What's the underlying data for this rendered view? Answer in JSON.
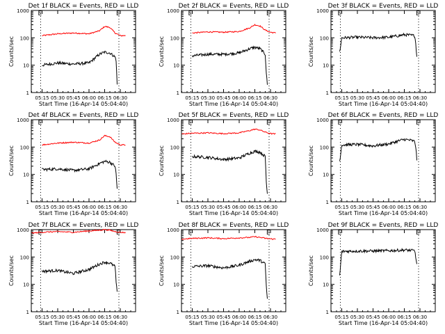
{
  "layout_note": "3x3 grid of RHESSI detector count-rate time series",
  "chart_data": [
    {
      "type": "line",
      "title": "Det 1f BLACK = Events, RED = LLD",
      "xlabel": "Start Time (16-Apr-14 05:04:40)",
      "ylabel": "Counts/sec",
      "yscale": "log",
      "ylim": [
        1,
        1000
      ],
      "x_ticks": [
        "05:15",
        "05:30",
        "05:45",
        "06:00",
        "06:15",
        "06:30"
      ],
      "y_ticks": [
        "1",
        "10",
        "100",
        "1000"
      ],
      "markers": [
        "E",
        "E"
      ],
      "series": [
        {
          "color": "#ff0000",
          "x": [
            "05:15",
            "05:30",
            "05:45",
            "06:00",
            "06:10",
            "06:15",
            "06:20",
            "06:25",
            "06:30",
            "06:35"
          ],
          "y": [
            120,
            140,
            150,
            140,
            180,
            260,
            240,
            150,
            120,
            120
          ]
        },
        {
          "color": "#000000",
          "x": [
            "05:15",
            "05:30",
            "05:45",
            "06:00",
            "06:10",
            "06:15",
            "06:20",
            "06:25",
            "06:26",
            "06:27"
          ],
          "y": [
            10,
            12,
            11,
            12,
            25,
            30,
            28,
            20,
            15,
            2
          ]
        }
      ]
    },
    {
      "type": "line",
      "title": "Det 2f BLACK = Events, RED = LLD",
      "xlabel": "Start Time (16-Apr-14 05:04:40)",
      "ylabel": "Counts/sec",
      "yscale": "log",
      "ylim": [
        1,
        1000
      ],
      "x_ticks": [
        "05:15",
        "05:30",
        "05:45",
        "06:00",
        "06:15",
        "06:30"
      ],
      "y_ticks": [
        "1",
        "10",
        "100",
        "1000"
      ],
      "markers": [
        "E",
        "E"
      ],
      "series": [
        {
          "color": "#ff0000",
          "x": [
            "05:15",
            "05:30",
            "05:45",
            "06:00",
            "06:10",
            "06:15",
            "06:20",
            "06:25",
            "06:30",
            "06:35"
          ],
          "y": [
            150,
            165,
            160,
            170,
            230,
            300,
            270,
            190,
            160,
            150
          ]
        },
        {
          "color": "#000000",
          "x": [
            "05:15",
            "05:30",
            "05:45",
            "06:00",
            "06:10",
            "06:15",
            "06:20",
            "06:25",
            "06:26",
            "06:27"
          ],
          "y": [
            22,
            25,
            25,
            28,
            40,
            45,
            40,
            25,
            5,
            2
          ]
        }
      ]
    },
    {
      "type": "line",
      "title": "Det 3f BLACK = Events, RED = LLD",
      "xlabel": "Start Time (16-Apr-14 05:04:40)",
      "ylabel": "Counts/sec",
      "yscale": "log",
      "ylim": [
        1,
        1000
      ],
      "x_ticks": [
        "05:15",
        "05:30",
        "05:45",
        "06:00",
        "06:15",
        "06:30"
      ],
      "y_ticks": [
        "1",
        "10",
        "100",
        "1000"
      ],
      "markers": [
        "E",
        "E"
      ],
      "series": [
        {
          "color": "#000000",
          "x": [
            "05:13",
            "05:15",
            "05:30",
            "05:45",
            "06:00",
            "06:10",
            "06:15",
            "06:20",
            "06:25",
            "06:26",
            "06:27"
          ],
          "y": [
            30,
            100,
            105,
            100,
            105,
            120,
            130,
            125,
            120,
            60,
            20
          ]
        }
      ]
    },
    {
      "type": "line",
      "title": "Det 4f BLACK = Events, RED = LLD",
      "xlabel": "Start Time (16-Apr-14 05:04:40)",
      "ylabel": "Counts/sec",
      "yscale": "log",
      "ylim": [
        1,
        1000
      ],
      "x_ticks": [
        "05:15",
        "05:30",
        "05:45",
        "06:00",
        "06:15",
        "06:30"
      ],
      "y_ticks": [
        "1",
        "10",
        "100",
        "1000"
      ],
      "markers": [
        "E",
        "E"
      ],
      "series": [
        {
          "color": "#ff0000",
          "x": [
            "05:15",
            "05:30",
            "05:45",
            "06:00",
            "06:10",
            "06:15",
            "06:20",
            "06:25",
            "06:30",
            "06:35"
          ],
          "y": [
            120,
            140,
            150,
            140,
            180,
            260,
            240,
            150,
            120,
            120
          ]
        },
        {
          "color": "#000000",
          "x": [
            "05:15",
            "05:30",
            "05:45",
            "06:00",
            "06:10",
            "06:15",
            "06:20",
            "06:25",
            "06:26",
            "06:27"
          ],
          "y": [
            15,
            16,
            14,
            16,
            25,
            30,
            28,
            20,
            10,
            3
          ]
        }
      ]
    },
    {
      "type": "line",
      "title": "Det 5f BLACK = Events, RED = LLD",
      "xlabel": "Start Time (16-Apr-14 05:04:40)",
      "ylabel": "Counts/sec",
      "yscale": "log",
      "ylim": [
        1,
        1000
      ],
      "x_ticks": [
        "05:15",
        "05:30",
        "05:45",
        "06:00",
        "06:15",
        "06:30"
      ],
      "y_ticks": [
        "1",
        "10",
        "100",
        "1000"
      ],
      "markers": [
        "E",
        "E"
      ],
      "series": [
        {
          "color": "#ff0000",
          "x": [
            "05:05",
            "05:15",
            "05:30",
            "05:45",
            "06:00",
            "06:10",
            "06:15",
            "06:20",
            "06:25",
            "06:30",
            "06:35"
          ],
          "y": [
            300,
            320,
            330,
            310,
            330,
            400,
            450,
            420,
            350,
            310,
            300
          ]
        },
        {
          "color": "#000000",
          "x": [
            "05:15",
            "05:30",
            "05:45",
            "06:00",
            "06:10",
            "06:15",
            "06:20",
            "06:25",
            "06:26",
            "06:27"
          ],
          "y": [
            45,
            42,
            35,
            40,
            60,
            70,
            65,
            45,
            5,
            2
          ]
        }
      ]
    },
    {
      "type": "line",
      "title": "Det 6f BLACK = Events, RED = LLD",
      "xlabel": "Start Time (16-Apr-14 05:04:40)",
      "ylabel": "Counts/sec",
      "yscale": "log",
      "ylim": [
        1,
        1000
      ],
      "x_ticks": [
        "05:15",
        "05:30",
        "05:45",
        "06:00",
        "06:15",
        "06:30"
      ],
      "y_ticks": [
        "1",
        "10",
        "100",
        "1000"
      ],
      "markers": [
        "E",
        "E"
      ],
      "series": [
        {
          "color": "#000000",
          "x": [
            "05:13",
            "05:15",
            "05:30",
            "05:45",
            "06:00",
            "06:10",
            "06:15",
            "06:20",
            "06:25",
            "06:26",
            "06:27"
          ],
          "y": [
            30,
            120,
            125,
            110,
            130,
            170,
            190,
            180,
            160,
            100,
            35
          ]
        }
      ]
    },
    {
      "type": "line",
      "title": "Det 7f BLACK = Events, RED = LLD",
      "xlabel": "Start Time (16-Apr-14 05:04:40)",
      "ylabel": "Counts/sec",
      "yscale": "log",
      "ylim": [
        1,
        1000
      ],
      "x_ticks": [
        "05:15",
        "05:30",
        "05:45",
        "06:00",
        "06:15",
        "06:30"
      ],
      "y_ticks": [
        "1",
        "10",
        "100",
        "1000"
      ],
      "markers": [
        "E",
        "E"
      ],
      "series": [
        {
          "color": "#ff0000",
          "x": [
            "05:05",
            "05:15",
            "05:30",
            "05:45",
            "06:00",
            "06:10",
            "06:15",
            "06:20",
            "06:25",
            "06:30",
            "06:35"
          ],
          "y": [
            750,
            800,
            850,
            800,
            900,
            950,
            1000,
            950,
            850,
            800,
            780
          ]
        },
        {
          "color": "#000000",
          "x": [
            "05:15",
            "05:30",
            "05:45",
            "06:00",
            "06:10",
            "06:15",
            "06:20",
            "06:25",
            "06:26",
            "06:27"
          ],
          "y": [
            30,
            32,
            25,
            35,
            55,
            65,
            60,
            45,
            12,
            5
          ]
        }
      ]
    },
    {
      "type": "line",
      "title": "Det 8f BLACK = Events, RED = LLD",
      "xlabel": "Start Time (16-Apr-14 05:04:40)",
      "ylabel": "Counts/sec",
      "yscale": "log",
      "ylim": [
        1,
        1000
      ],
      "x_ticks": [
        "05:15",
        "05:30",
        "05:45",
        "06:00",
        "06:15",
        "06:30"
      ],
      "y_ticks": [
        "1",
        "10",
        "100",
        "1000"
      ],
      "markers": [
        "E",
        "E"
      ],
      "series": [
        {
          "color": "#ff0000",
          "x": [
            "05:05",
            "05:15",
            "05:30",
            "05:45",
            "06:00",
            "06:10",
            "06:15",
            "06:20",
            "06:25",
            "06:30",
            "06:35"
          ],
          "y": [
            450,
            480,
            500,
            470,
            500,
            520,
            550,
            520,
            480,
            460,
            450
          ]
        },
        {
          "color": "#000000",
          "x": [
            "05:15",
            "05:30",
            "05:45",
            "06:00",
            "06:10",
            "06:15",
            "06:20",
            "06:25",
            "06:26",
            "06:27"
          ],
          "y": [
            45,
            48,
            40,
            50,
            70,
            80,
            75,
            55,
            8,
            3
          ]
        }
      ]
    },
    {
      "type": "line",
      "title": "Det 9f BLACK = Events, RED = LLD",
      "xlabel": "Start Time (16-Apr-14 05:04:40)",
      "ylabel": "Counts/sec",
      "yscale": "log",
      "ylim": [
        1,
        1000
      ],
      "x_ticks": [
        "05:15",
        "05:30",
        "05:45",
        "06:00",
        "06:15",
        "06:30"
      ],
      "y_ticks": [
        "1",
        "10",
        "100",
        "1000"
      ],
      "markers": [
        "E",
        "E"
      ],
      "series": [
        {
          "color": "#000000",
          "x": [
            "05:13",
            "05:15",
            "05:30",
            "05:45",
            "06:00",
            "06:10",
            "06:15",
            "06:20",
            "06:25",
            "06:26",
            "06:27"
          ],
          "y": [
            20,
            160,
            165,
            165,
            170,
            175,
            180,
            175,
            170,
            100,
            50
          ]
        }
      ]
    }
  ]
}
